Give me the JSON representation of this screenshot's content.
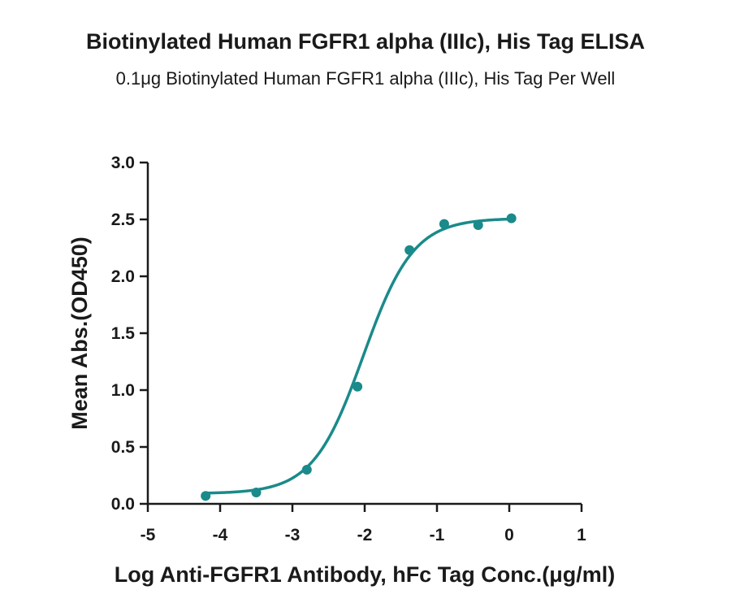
{
  "title": "Biotinylated Human FGFR1 alpha (IIIc), His Tag ELISA",
  "subtitle": "0.1μg Biotinylated Human FGFR1 alpha (IIIc), His Tag Per Well",
  "chart_data": {
    "type": "scatter",
    "title": "Biotinylated Human FGFR1 alpha (IIIc), His Tag ELISA",
    "subtitle": "0.1μg Biotinylated Human FGFR1 alpha (IIIc), His Tag Per Well",
    "xlabel": "Log Anti-FGFR1 Antibody, hFc Tag Conc.(μg/ml)",
    "ylabel": "Mean Abs.(OD450)",
    "xlim": [
      -5,
      1
    ],
    "ylim": [
      0,
      3.0
    ],
    "xticks": [
      "-5",
      "-4",
      "-3",
      "-2",
      "-1",
      "0",
      "1"
    ],
    "yticks": [
      "0.0",
      "0.5",
      "1.0",
      "1.5",
      "2.0",
      "2.5",
      "3.0"
    ],
    "grid": false,
    "color": "#1a8a8a",
    "series": [
      {
        "x": [
          -4.2,
          -3.5,
          -2.8,
          -2.1,
          -1.38,
          -0.9,
          -0.43,
          0.03
        ],
        "y": [
          0.07,
          0.1,
          0.3,
          1.03,
          2.23,
          2.46,
          2.45,
          2.51
        ]
      }
    ],
    "fit": {
      "model": "four-parameter logistic",
      "bottom": 0.09,
      "top": 2.51,
      "log_ec50": -2.02,
      "hill": 1.25
    }
  }
}
